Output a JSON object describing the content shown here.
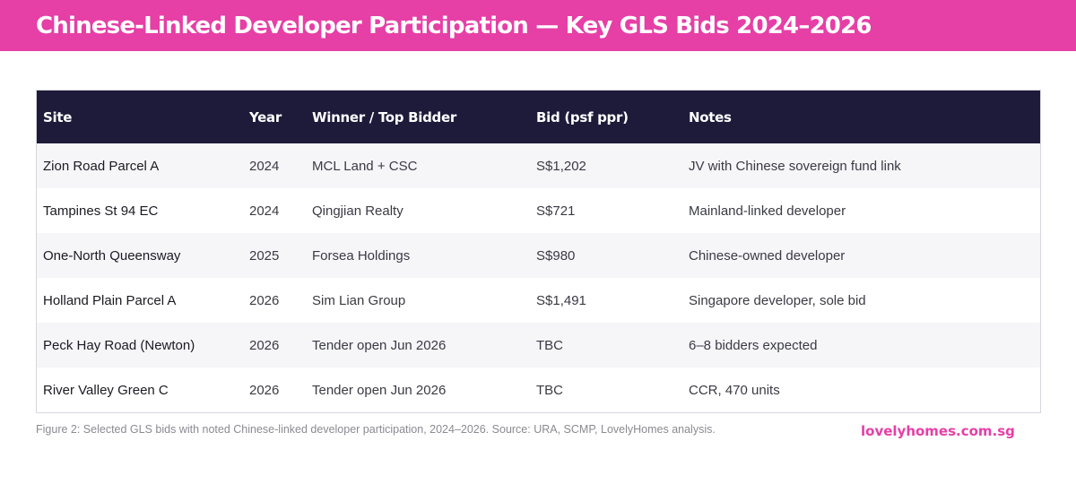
{
  "header": {
    "title": "Chinese-Linked Developer Participation — Key GLS Bids 2024–2026"
  },
  "table": {
    "columns": [
      "Site",
      "Year",
      "Winner / Top Bidder",
      "Bid (psf ppr)",
      "Notes"
    ],
    "rows": [
      {
        "site": "Zion Road Parcel A",
        "year": "2024",
        "winner": "MCL Land + CSC",
        "bid": "S$1,202",
        "notes": "JV with Chinese sovereign fund link"
      },
      {
        "site": "Tampines St 94 EC",
        "year": "2024",
        "winner": "Qingjian Realty",
        "bid": "S$721",
        "notes": "Mainland-linked developer"
      },
      {
        "site": "One-North Queensway",
        "year": "2025",
        "winner": "Forsea Holdings",
        "bid": "S$980",
        "notes": "Chinese-owned developer"
      },
      {
        "site": "Holland Plain Parcel A",
        "year": "2026",
        "winner": "Sim Lian Group",
        "bid": "S$1,491",
        "notes": "Singapore developer, sole bid"
      },
      {
        "site": "Peck Hay Road (Newton)",
        "year": "2026",
        "winner": "Tender open Jun 2026",
        "bid": "TBC",
        "notes": "6–8 bidders expected"
      },
      {
        "site": "River Valley Green C",
        "year": "2026",
        "winner": "Tender open Jun 2026",
        "bid": "TBC",
        "notes": "CCR, 470 units"
      }
    ]
  },
  "caption": "Figure 2: Selected GLS bids with noted Chinese-linked developer participation, 2024–2026. Source: URA, SCMP, LovelyHomes analysis.",
  "brand": "lovelyhomes.com.sg",
  "colors": {
    "accent": "#e63fa6",
    "header_row": "#1e1a3a"
  }
}
